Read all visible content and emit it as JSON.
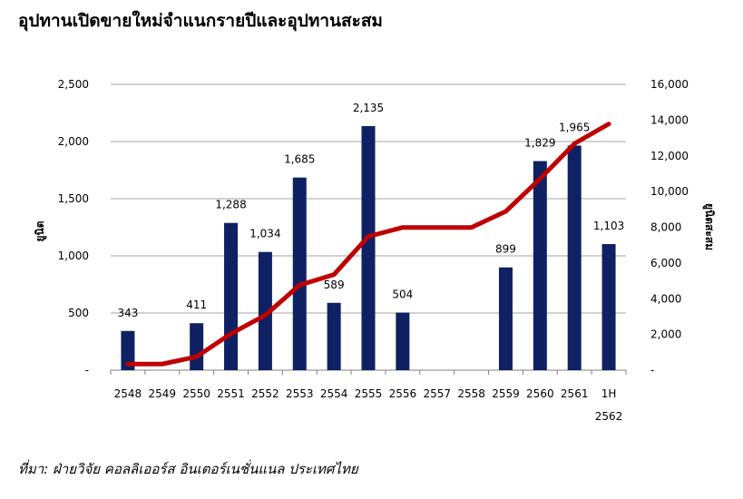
{
  "title": "อุปทานเปิดขายใหม่จำแนกรายปีและอุปทานสะสม",
  "source": "ที่มา: ฝ่ายวิจัย คอลลิเออร์ส อินเตอร์เนชั่นแนล ประเทศไทย",
  "colors": {
    "bar": "#0f2163",
    "line": "#c00000",
    "grid": "#a6a6a6"
  },
  "chart_data": {
    "type": "bar+line",
    "categories": [
      "2548",
      "2549",
      "2550",
      "2551",
      "2552",
      "2553",
      "2554",
      "2555",
      "2556",
      "2557",
      "2558",
      "2559",
      "2560",
      "2561",
      "1H 2562"
    ],
    "category_lines": [
      [
        "2548"
      ],
      [
        "2549"
      ],
      [
        "2550"
      ],
      [
        "2551"
      ],
      [
        "2552"
      ],
      [
        "2553"
      ],
      [
        "2554"
      ],
      [
        "2555"
      ],
      [
        "2556"
      ],
      [
        "2557"
      ],
      [
        "2558"
      ],
      [
        "2559"
      ],
      [
        "2560"
      ],
      [
        "2561"
      ],
      [
        "1H",
        "2562"
      ]
    ],
    "bars": {
      "axis": "left",
      "values": [
        343,
        0,
        411,
        1288,
        1034,
        1685,
        589,
        2135,
        504,
        0,
        0,
        899,
        1829,
        1965,
        1103
      ],
      "labels": [
        "343",
        "",
        "411",
        "1,288",
        "1,034",
        "1,685",
        "589",
        "2,135",
        "504",
        "",
        "",
        "899",
        "1,829",
        "1,965",
        "1,103"
      ]
    },
    "line": {
      "axis": "right",
      "values": [
        343,
        343,
        754,
        2042,
        3076,
        4761,
        5350,
        7485,
        7989,
        7989,
        7989,
        8888,
        10717,
        12682,
        13785
      ]
    },
    "left_axis": {
      "label": "ยูนิต",
      "ylim": [
        0,
        2500
      ],
      "ticks": [
        0,
        500,
        1000,
        1500,
        2000,
        2500
      ],
      "tick_labels": [
        "-",
        "500",
        "1,000",
        "1,500",
        "2,000",
        "2,500"
      ]
    },
    "right_axis": {
      "label": "ยูนิตสะสม",
      "ylim": [
        0,
        16000
      ],
      "ticks": [
        0,
        2000,
        4000,
        6000,
        8000,
        10000,
        12000,
        14000,
        16000
      ],
      "tick_labels": [
        "-",
        "2,000",
        "4,000",
        "6,000",
        "8,000",
        "10,000",
        "12,000",
        "14,000",
        "16,000"
      ]
    },
    "grid": true,
    "legend": "none"
  }
}
